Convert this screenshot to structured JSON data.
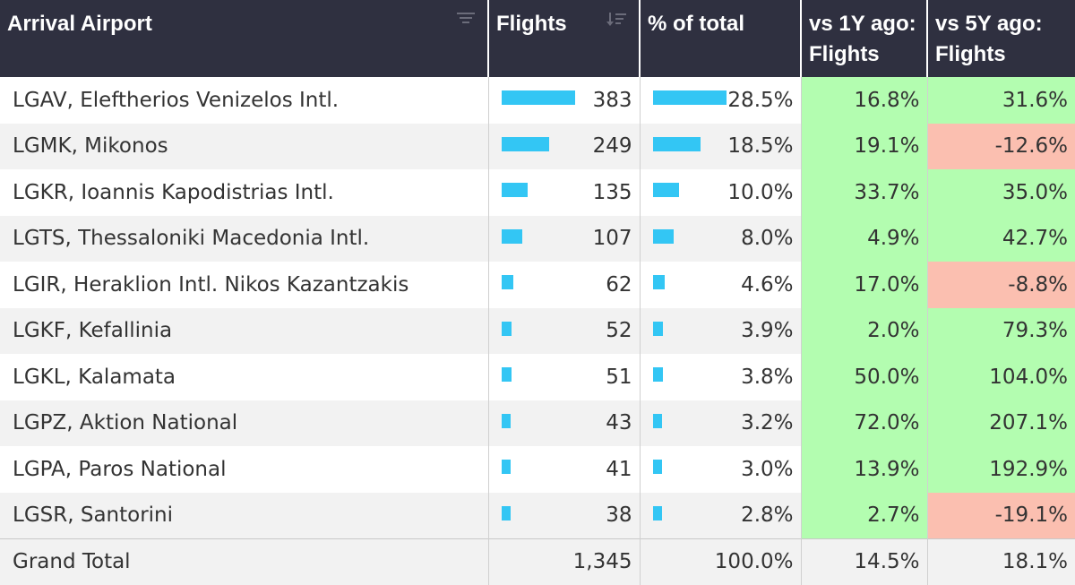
{
  "headers": {
    "airport": "Arrival Airport",
    "flights": "Flights",
    "pct": "% of total",
    "vs1y_line1": "vs 1Y ago:",
    "vs1y_line2": "Flights",
    "vs5y_line1": "vs 5Y ago:",
    "vs5y_line2": "Flights"
  },
  "colors": {
    "header_bg": "#2f3040",
    "bar": "#33c6f4",
    "positive": "#b3fdb0",
    "negative": "#fbbfb0"
  },
  "icons": {
    "airport_sort": "filter-sort-icon",
    "flights_sort": "sort-descending-icon"
  },
  "rows": [
    {
      "airport": "LGAV, Eleftherios Venizelos Intl.",
      "flights": "383",
      "flights_value": 383,
      "pct": "28.5%",
      "pct_value": 28.5,
      "vs1y": "16.8%",
      "vs1y_value": 16.8,
      "vs5y": "31.6%",
      "vs5y_value": 31.6
    },
    {
      "airport": "LGMK, Mikonos",
      "flights": "249",
      "flights_value": 249,
      "pct": "18.5%",
      "pct_value": 18.5,
      "vs1y": "19.1%",
      "vs1y_value": 19.1,
      "vs5y": "-12.6%",
      "vs5y_value": -12.6
    },
    {
      "airport": "LGKR, Ioannis Kapodistrias Intl.",
      "flights": "135",
      "flights_value": 135,
      "pct": "10.0%",
      "pct_value": 10.0,
      "vs1y": "33.7%",
      "vs1y_value": 33.7,
      "vs5y": "35.0%",
      "vs5y_value": 35.0
    },
    {
      "airport": "LGTS, Thessaloniki Macedonia Intl.",
      "flights": "107",
      "flights_value": 107,
      "pct": "8.0%",
      "pct_value": 8.0,
      "vs1y": "4.9%",
      "vs1y_value": 4.9,
      "vs5y": "42.7%",
      "vs5y_value": 42.7
    },
    {
      "airport": "LGIR, Heraklion Intl. Nikos Kazantzakis",
      "flights": "62",
      "flights_value": 62,
      "pct": "4.6%",
      "pct_value": 4.6,
      "vs1y": "17.0%",
      "vs1y_value": 17.0,
      "vs5y": "-8.8%",
      "vs5y_value": -8.8
    },
    {
      "airport": "LGKF, Kefallinia",
      "flights": "52",
      "flights_value": 52,
      "pct": "3.9%",
      "pct_value": 3.9,
      "vs1y": "2.0%",
      "vs1y_value": 2.0,
      "vs5y": "79.3%",
      "vs5y_value": 79.3
    },
    {
      "airport": "LGKL, Kalamata",
      "flights": "51",
      "flights_value": 51,
      "pct": "3.8%",
      "pct_value": 3.8,
      "vs1y": "50.0%",
      "vs1y_value": 50.0,
      "vs5y": "104.0%",
      "vs5y_value": 104.0
    },
    {
      "airport": "LGPZ, Aktion National",
      "flights": "43",
      "flights_value": 43,
      "pct": "3.2%",
      "pct_value": 3.2,
      "vs1y": "72.0%",
      "vs1y_value": 72.0,
      "vs5y": "207.1%",
      "vs5y_value": 207.1
    },
    {
      "airport": "LGPA, Paros National",
      "flights": "41",
      "flights_value": 41,
      "pct": "3.0%",
      "pct_value": 3.0,
      "vs1y": "13.9%",
      "vs1y_value": 13.9,
      "vs5y": "192.9%",
      "vs5y_value": 192.9
    },
    {
      "airport": "LGSR, Santorini",
      "flights": "38",
      "flights_value": 38,
      "pct": "2.8%",
      "pct_value": 2.8,
      "vs1y": "2.7%",
      "vs1y_value": 2.7,
      "vs5y": "-19.1%",
      "vs5y_value": -19.1
    }
  ],
  "total": {
    "label": "Grand Total",
    "flights": "1,345",
    "pct": "100.0%",
    "vs1y": "14.5%",
    "vs5y": "18.1%"
  }
}
